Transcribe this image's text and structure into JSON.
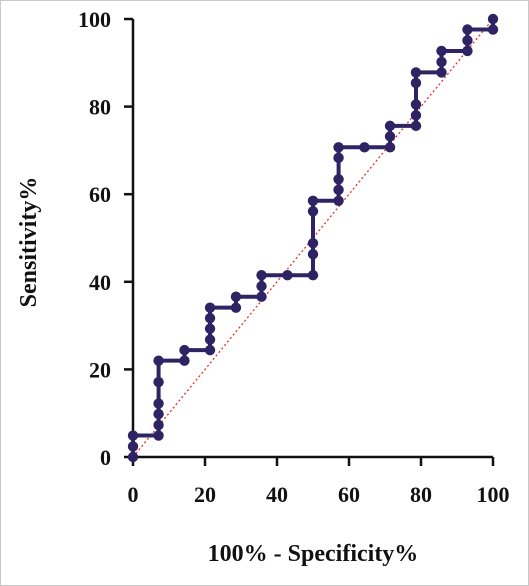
{
  "chart_data": {
    "type": "line",
    "title": "",
    "xlabel": "100% - Specificity%",
    "ylabel": "Sensitivity%",
    "xlim": [
      0,
      100
    ],
    "ylim": [
      0,
      100
    ],
    "xticks": [
      0,
      20,
      40,
      60,
      80,
      100
    ],
    "yticks": [
      0,
      20,
      40,
      60,
      80,
      100
    ],
    "grid": false,
    "legend": "none",
    "colors": {
      "roc": "#2e2463",
      "reference": "#e8302a",
      "axis": "#111111"
    },
    "series": [
      {
        "style": "step-line-with-markers",
        "points": [
          [
            0,
            0
          ],
          [
            0,
            2.4
          ],
          [
            0,
            4.9
          ],
          [
            7.1,
            4.9
          ],
          [
            7.1,
            7.3
          ],
          [
            7.1,
            9.8
          ],
          [
            7.1,
            12.2
          ],
          [
            7.1,
            17.1
          ],
          [
            7.1,
            22.0
          ],
          [
            14.3,
            22.0
          ],
          [
            14.3,
            24.4
          ],
          [
            21.4,
            24.4
          ],
          [
            21.4,
            26.8
          ],
          [
            21.4,
            29.3
          ],
          [
            21.4,
            31.7
          ],
          [
            21.4,
            34.1
          ],
          [
            28.6,
            34.1
          ],
          [
            28.6,
            36.6
          ],
          [
            35.7,
            36.6
          ],
          [
            35.7,
            39.0
          ],
          [
            35.7,
            41.5
          ],
          [
            42.9,
            41.5
          ],
          [
            50.0,
            41.5
          ],
          [
            50.0,
            46.3
          ],
          [
            50.0,
            48.8
          ],
          [
            50.0,
            56.1
          ],
          [
            50.0,
            58.5
          ],
          [
            57.1,
            58.5
          ],
          [
            57.1,
            61.0
          ],
          [
            57.1,
            63.4
          ],
          [
            57.1,
            68.3
          ],
          [
            57.1,
            70.7
          ],
          [
            64.3,
            70.7
          ],
          [
            71.4,
            70.7
          ],
          [
            71.4,
            73.2
          ],
          [
            71.4,
            75.6
          ],
          [
            78.6,
            75.6
          ],
          [
            78.6,
            78.0
          ],
          [
            78.6,
            80.5
          ],
          [
            78.6,
            85.4
          ],
          [
            78.6,
            87.8
          ],
          [
            85.7,
            87.8
          ],
          [
            85.7,
            90.2
          ],
          [
            85.7,
            92.7
          ],
          [
            92.9,
            92.7
          ],
          [
            92.9,
            95.1
          ],
          [
            92.9,
            97.6
          ],
          [
            100,
            97.6
          ],
          [
            100,
            100
          ]
        ]
      },
      {
        "style": "dotted-reference-diagonal",
        "points": [
          [
            0,
            0
          ],
          [
            100,
            100
          ]
        ]
      }
    ]
  }
}
